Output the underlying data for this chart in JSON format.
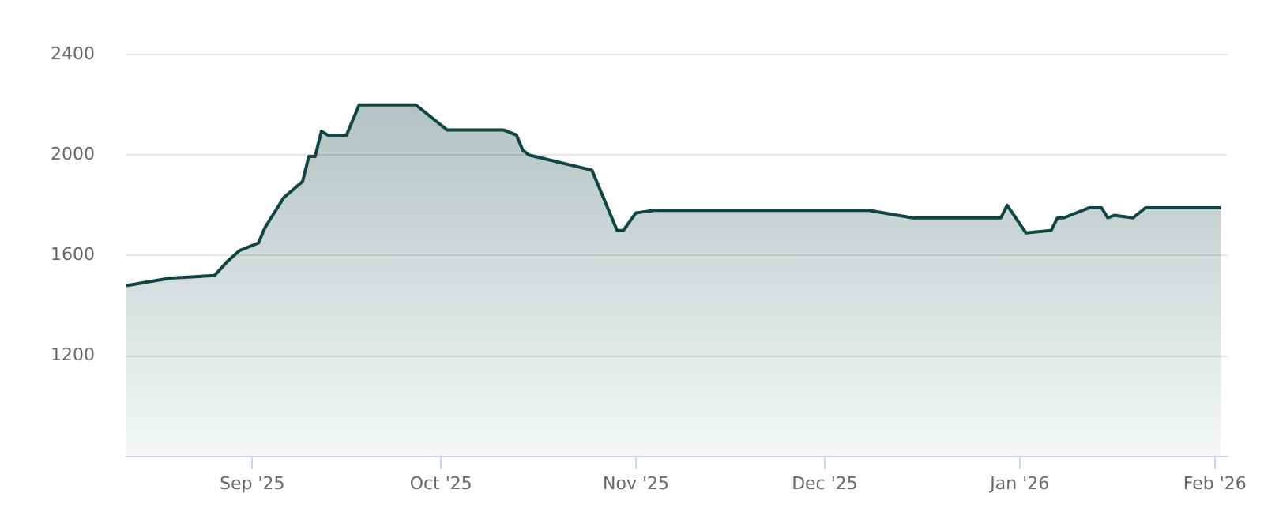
{
  "chart_data": {
    "type": "area",
    "x": [
      "2025-08-12",
      "2025-08-19",
      "2025-08-26",
      "2025-08-28",
      "2025-08-30",
      "2025-09-02",
      "2025-09-03",
      "2025-09-06",
      "2025-09-09",
      "2025-09-10",
      "2025-09-11",
      "2025-09-12",
      "2025-09-13",
      "2025-09-16",
      "2025-09-18",
      "2025-09-27",
      "2025-10-02",
      "2025-10-11",
      "2025-10-13",
      "2025-10-14",
      "2025-10-15",
      "2025-10-25",
      "2025-10-29",
      "2025-10-30",
      "2025-11-01",
      "2025-11-04",
      "2025-12-08",
      "2025-12-15",
      "2025-12-29",
      "2025-12-30",
      "2026-01-02",
      "2026-01-06",
      "2026-01-07",
      "2026-01-08",
      "2026-01-12",
      "2026-01-14",
      "2026-01-15",
      "2026-01-16",
      "2026-01-19",
      "2026-01-21",
      "2026-02-02"
    ],
    "series": [
      {
        "color": "#0f4542",
        "values": [
          1480,
          1510,
          1520,
          1575,
          1620,
          1650,
          1710,
          1830,
          1895,
          1995,
          1995,
          2095,
          2080,
          2080,
          2200,
          2200,
          2100,
          2100,
          2080,
          2020,
          2000,
          1940,
          1700,
          1700,
          1770,
          1780,
          1780,
          1750,
          1750,
          1800,
          1690,
          1700,
          1750,
          1750,
          1790,
          1790,
          1750,
          1760,
          1750,
          1790,
          1790
        ]
      }
    ],
    "xlim": [
      "2025-08-12",
      "2026-02-03"
    ],
    "xticks": [
      {
        "value": "2025-09-01",
        "label": "Sep '25"
      },
      {
        "value": "2025-10-01",
        "label": "Oct '25"
      },
      {
        "value": "2025-11-01",
        "label": "Nov '25"
      },
      {
        "value": "2025-12-01",
        "label": "Dec '25"
      },
      {
        "value": "2026-01-01",
        "label": "Jan '26"
      },
      {
        "value": "2026-02-01",
        "label": "Feb '26"
      }
    ],
    "ylim": [
      800,
      2400
    ],
    "yticks": [
      1200,
      1600,
      2000,
      2400
    ],
    "grid": "y",
    "legend": false,
    "marker": "none",
    "line_style": "solid"
  }
}
